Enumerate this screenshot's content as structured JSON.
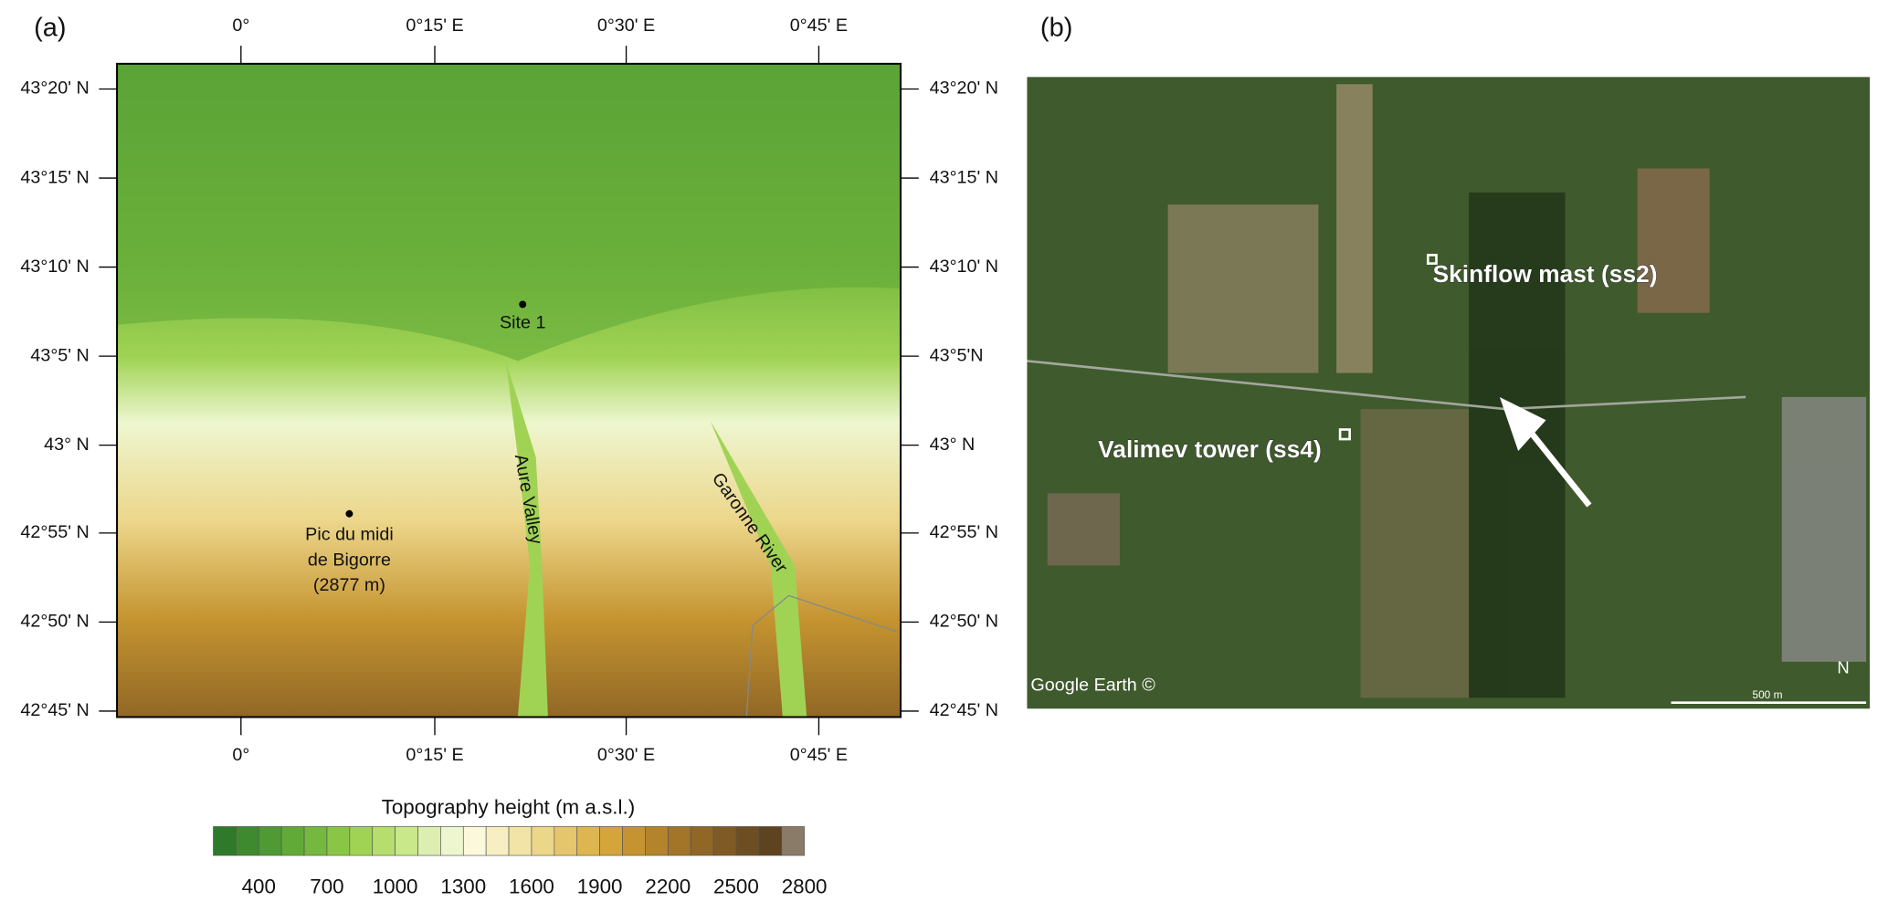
{
  "panel_a": {
    "label": "(a)",
    "top_ticks": [
      "0°",
      "0°15' E",
      "0°30' E",
      "0°45' E"
    ],
    "bottom_ticks": [
      "0°",
      "0°15' E",
      "0°30' E",
      "0°45' E"
    ],
    "left_ticks": [
      "43°20' N",
      "43°15' N",
      "43°10' N",
      "43°5' N",
      "43° N",
      "42°55' N",
      "42°50' N",
      "42°45' N"
    ],
    "right_ticks": [
      "43°20' N",
      "43°15' N",
      "43°10' N",
      "43°5'N",
      "43° N",
      "42°55' N",
      "42°50' N",
      "42°45' N"
    ],
    "annotations": {
      "site": "Site 1",
      "peak": [
        "Pic du midi",
        "de Bigorre",
        "(2877 m)"
      ],
      "valley": "Aure Valley",
      "river": "Garonne River"
    },
    "colorbar": {
      "title": "Topography height  (m a.s.l.)",
      "labels": [
        400,
        700,
        1000,
        1300,
        1600,
        1900,
        2200,
        2500,
        2800
      ],
      "colors": [
        "#2e7a2a",
        "#3e8a2e",
        "#4f9a33",
        "#62aa38",
        "#75b83e",
        "#8ac646",
        "#a0d354",
        "#b6de6c",
        "#c9e88a",
        "#dcefb0",
        "#eef6d0",
        "#fbf8dc",
        "#f7efc2",
        "#f2e4a6",
        "#ecd68a",
        "#e5c66d",
        "#ddb651",
        "#d3a53a",
        "#c59430",
        "#b4842c",
        "#a37529",
        "#916726",
        "#7f5a24",
        "#6d4e22",
        "#5e4320",
        "#8a7a68"
      ]
    }
  },
  "panel_b": {
    "label": "(b)",
    "mast": "Skinflow mast (ss2)",
    "tower": "Valimev tower (ss4)",
    "credit": "Google Earth ©",
    "scale": "500 m",
    "north": "N"
  }
}
